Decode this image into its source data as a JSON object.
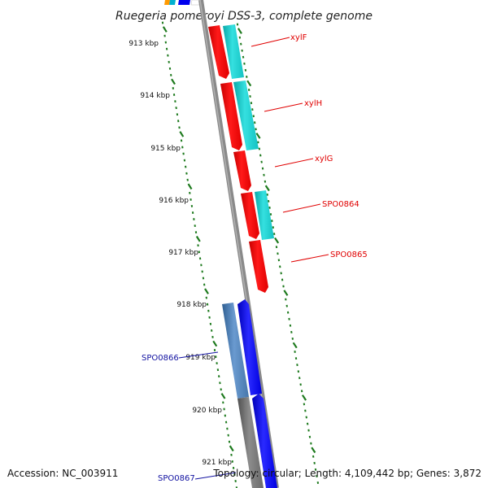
{
  "title": "Ruegeria pomeroyi DSS-3, complete genome",
  "colors": {
    "forward_red": "#ff0000",
    "cyan": "#12c8c8",
    "blue": "#0000ee",
    "steel_blue": "#4a7fb5",
    "grey": "#707070",
    "backbone": "#8a8a8a",
    "tick_green": "#1e7a1e",
    "label_red": "#e00000",
    "label_blue": "#1010a0"
  },
  "ticks": [
    "913 kbp",
    "914 kbp",
    "915 kbp",
    "916 kbp",
    "917 kbp",
    "918 kbp",
    "919 kbp",
    "920 kbp",
    "921 kbp"
  ],
  "genes_red": [
    "xylF",
    "xylH",
    "xylG",
    "SPO0864",
    "SPO0865"
  ],
  "genes_blue": [
    "SPO0866",
    "SPO0867"
  ],
  "footer": {
    "accession": "Accession: NC_003911",
    "info": "Topology: circular; Length: 4,109,442 bp; Genes: 3,872"
  }
}
